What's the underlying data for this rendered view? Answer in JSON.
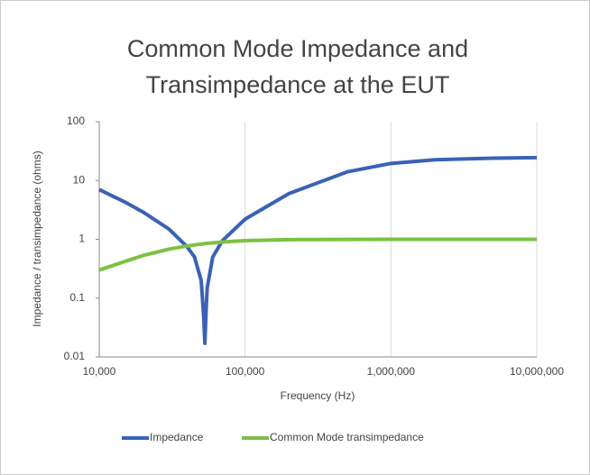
{
  "chart_data": {
    "type": "line",
    "title": [
      "Common Mode Impedance and",
      "Transimpedance at the EUT"
    ],
    "x_label": "Frequency (Hz)",
    "y_label": "Impedance / transimpedance (ohms)",
    "x": [
      10000,
      15000,
      20000,
      30000,
      40000,
      45000,
      50000,
      52000,
      53000,
      54000,
      55000,
      60000,
      70000,
      100000,
      200000,
      500000,
      1000000,
      2000000,
      5000000,
      10000000
    ],
    "series": [
      {
        "name": "Impedance",
        "color": "#3a62b4",
        "values": [
          7,
          4.3,
          2.9,
          1.5,
          0.75,
          0.5,
          0.2,
          0.05,
          0.017,
          0.06,
          0.15,
          0.5,
          0.95,
          2.2,
          6,
          14,
          19.5,
          22.5,
          24,
          24.5
        ]
      },
      {
        "name": "Common Mode transimpedance",
        "color": "#7cc142",
        "values": [
          0.3,
          0.42,
          0.53,
          0.68,
          0.77,
          0.8,
          0.83,
          0.84,
          0.845,
          0.85,
          0.855,
          0.87,
          0.9,
          0.95,
          0.985,
          0.997,
          1,
          1,
          1,
          1
        ]
      }
    ],
    "xlim": [
      10000,
      10000000
    ],
    "xticks": [
      {
        "value": 10000,
        "label": "10,000"
      },
      {
        "value": 100000,
        "label": "100,000"
      },
      {
        "value": 1000000,
        "label": "1,000,000"
      },
      {
        "value": 10000000,
        "label": "10,000,000"
      }
    ],
    "ylim": [
      0.01,
      100
    ],
    "yticks": [
      0.01,
      0.1,
      1,
      10,
      100
    ],
    "x_log": true,
    "y_log": true,
    "grid": "x",
    "legend": "bottom"
  }
}
